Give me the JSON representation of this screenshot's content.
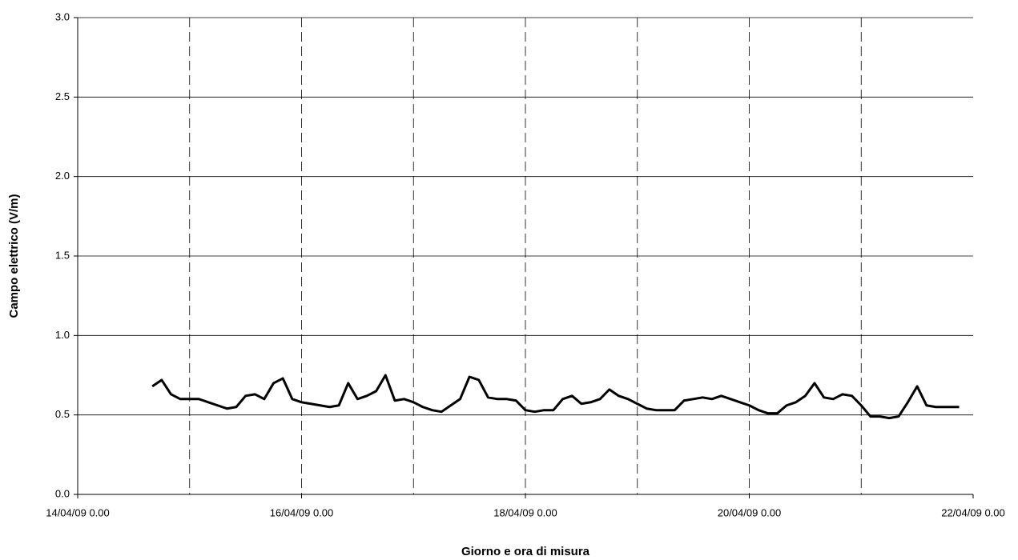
{
  "chart_data": {
    "type": "line",
    "x_label": "Giorno e ora di misura",
    "y_label": "Campo elettrico (V/m)",
    "xlim": [
      "14/04/09 0.00",
      "22/04/09 0.00"
    ],
    "xticks": [
      "14/04/09 0.00",
      "16/04/09 0.00",
      "18/04/09 0.00",
      "20/04/09 0.00",
      "22/04/09 0.00"
    ],
    "ylim": [
      0,
      3
    ],
    "yticks": [
      {
        "value": 0,
        "label": "0.0"
      },
      0.5,
      {
        "value": 1,
        "label": "1.0"
      },
      1.5,
      {
        "value": 2,
        "label": "2.0"
      },
      2.5,
      {
        "value": 3,
        "label": "3.0"
      }
    ],
    "grid": true,
    "x": [
      "14/04/09 16.00",
      "14/04/09 18.00",
      "14/04/09 20.00",
      "14/04/09 22.00",
      "15/04/09 0.00",
      "15/04/09 2.00",
      "15/04/09 4.00",
      "15/04/09 6.00",
      "15/04/09 8.00",
      "15/04/09 10.00",
      "15/04/09 12.00",
      "15/04/09 14.00",
      "15/04/09 16.00",
      "15/04/09 18.00",
      "15/04/09 20.00",
      "15/04/09 22.00",
      "16/04/09 0.00",
      "16/04/09 2.00",
      "16/04/09 4.00",
      "16/04/09 6.00",
      "16/04/09 8.00",
      "16/04/09 10.00",
      "16/04/09 12.00",
      "16/04/09 14.00",
      "16/04/09 16.00",
      "16/04/09 18.00",
      "16/04/09 20.00",
      "16/04/09 22.00",
      "17/04/09 0.00",
      "17/04/09 2.00",
      "17/04/09 4.00",
      "17/04/09 6.00",
      "17/04/09 8.00",
      "17/04/09 10.00",
      "17/04/09 12.00",
      "17/04/09 14.00",
      "17/04/09 16.00",
      "17/04/09 18.00",
      "17/04/09 20.00",
      "17/04/09 22.00",
      "18/04/09 0.00",
      "18/04/09 2.00",
      "18/04/09 4.00",
      "18/04/09 6.00",
      "18/04/09 8.00",
      "18/04/09 10.00",
      "18/04/09 12.00",
      "18/04/09 14.00",
      "18/04/09 16.00",
      "18/04/09 18.00",
      "18/04/09 20.00",
      "18/04/09 22.00",
      "19/04/09 0.00",
      "19/04/09 2.00",
      "19/04/09 4.00",
      "19/04/09 6.00",
      "19/04/09 8.00",
      "19/04/09 10.00",
      "19/04/09 12.00",
      "19/04/09 14.00",
      "19/04/09 16.00",
      "19/04/09 18.00",
      "19/04/09 20.00",
      "19/04/09 22.00",
      "20/04/09 0.00",
      "20/04/09 2.00",
      "20/04/09 4.00",
      "20/04/09 6.00",
      "20/04/09 8.00",
      "20/04/09 10.00",
      "20/04/09 12.00",
      "20/04/09 14.00",
      "20/04/09 16.00",
      "20/04/09 18.00",
      "20/04/09 20.00",
      "20/04/09 22.00",
      "21/04/09 0.00",
      "21/04/09 2.00",
      "21/04/09 4.00",
      "21/04/09 6.00",
      "21/04/09 8.00",
      "21/04/09 10.00",
      "21/04/09 12.00",
      "21/04/09 14.00",
      "21/04/09 16.00",
      "21/04/09 18.00",
      "21/04/09 20.00",
      "21/04/09 21.00"
    ],
    "series": [
      {
        "color": "#000000",
        "values": [
          0.68,
          0.72,
          0.63,
          0.6,
          0.6,
          0.6,
          0.58,
          0.56,
          0.54,
          0.55,
          0.62,
          0.63,
          0.6,
          0.7,
          0.73,
          0.6,
          0.58,
          0.57,
          0.56,
          0.55,
          0.56,
          0.7,
          0.6,
          0.62,
          0.65,
          0.75,
          0.59,
          0.6,
          0.58,
          0.55,
          0.53,
          0.52,
          0.56,
          0.6,
          0.74,
          0.72,
          0.61,
          0.6,
          0.6,
          0.59,
          0.53,
          0.52,
          0.53,
          0.53,
          0.6,
          0.62,
          0.57,
          0.58,
          0.6,
          0.66,
          0.62,
          0.6,
          0.57,
          0.54,
          0.53,
          0.53,
          0.53,
          0.59,
          0.6,
          0.61,
          0.6,
          0.62,
          0.6,
          0.58,
          0.56,
          0.53,
          0.51,
          0.51,
          0.56,
          0.58,
          0.62,
          0.7,
          0.61,
          0.6,
          0.63,
          0.62,
          0.56,
          0.49,
          0.49,
          0.48,
          0.49,
          0.58,
          0.68,
          0.56,
          0.55,
          0.55,
          0.55,
          0.55
        ]
      }
    ]
  }
}
